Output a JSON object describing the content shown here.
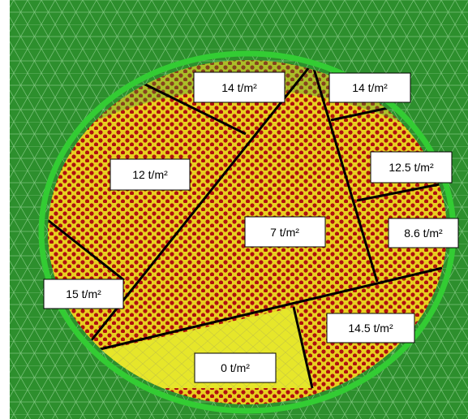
{
  "colors": {
    "background": "#2d8f2d",
    "mesh": "#8fd08f",
    "ring": "#33cc33",
    "loaded_dots": "#b01010",
    "loaded_fill": "#e8d020",
    "unloaded_fill": "#e6e62a",
    "boundary": "#000000"
  },
  "zones": [
    {
      "id": "zone-top-left",
      "label": "14 t/m²"
    },
    {
      "id": "zone-top-right",
      "label": "14 t/m²"
    },
    {
      "id": "zone-left",
      "label": "12 t/m²"
    },
    {
      "id": "zone-right-upper",
      "label": "12.5 t/m²"
    },
    {
      "id": "zone-center",
      "label": "7 t/m²"
    },
    {
      "id": "zone-right",
      "label": "8.6 t/m²"
    },
    {
      "id": "zone-lower-left",
      "label": "15 t/m²"
    },
    {
      "id": "zone-lower-right",
      "label": "14.5 t/m²"
    },
    {
      "id": "zone-bottom",
      "label": "0 t/m²"
    }
  ]
}
